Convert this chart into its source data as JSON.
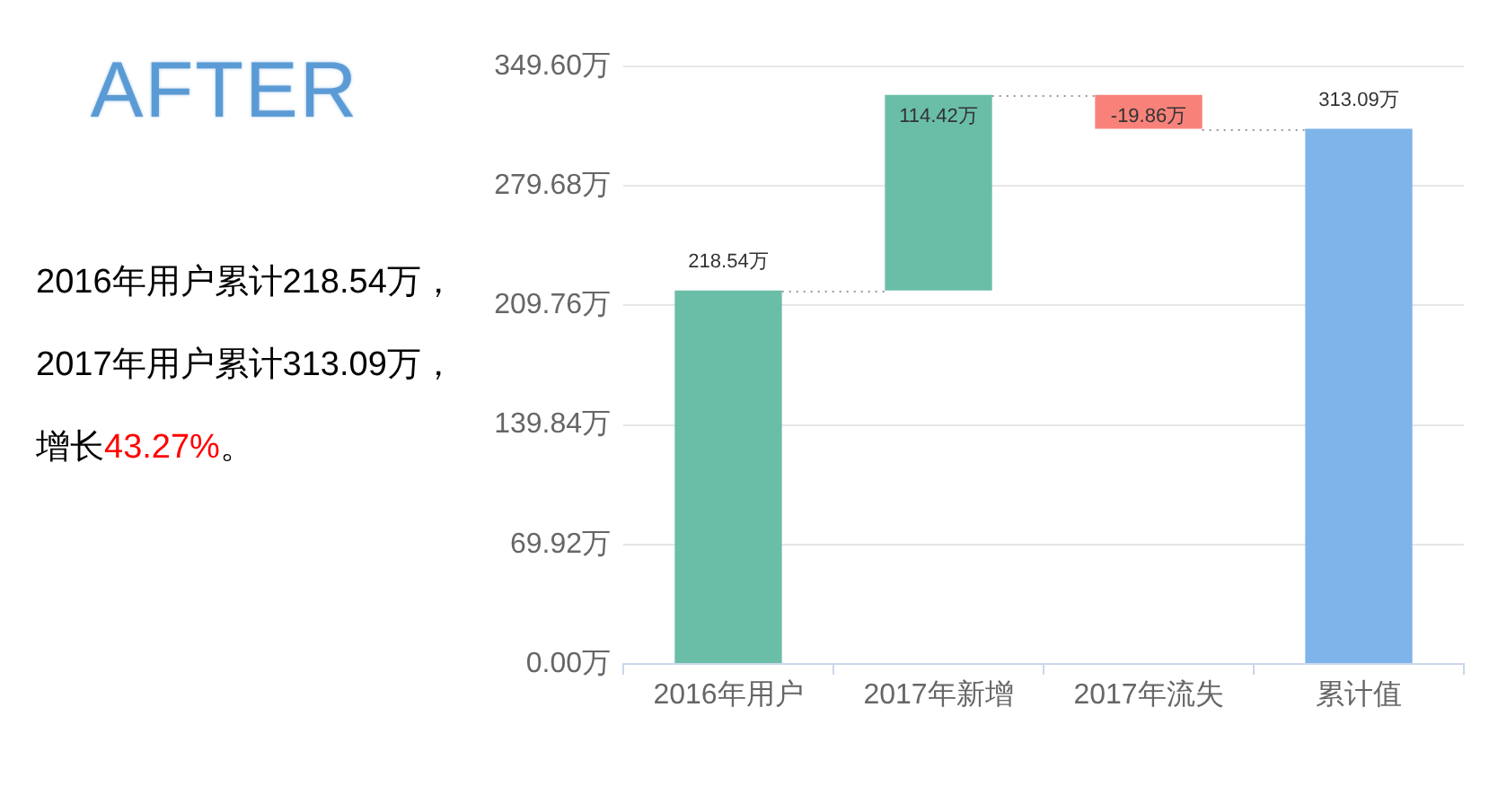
{
  "chart_data": {
    "type": "bar",
    "title": "AFTER",
    "annotations": [
      "2016年用户累计218.54万，",
      "2017年用户累计313.09万，",
      "增长",
      "43.27%",
      "。"
    ],
    "categories": [
      "2016年用户",
      "2017年新增",
      "2017年流失",
      "累计值"
    ],
    "values": [
      218.54,
      114.42,
      -19.86,
      313.09
    ],
    "base": [
      0,
      218.54,
      332.96,
      0
    ],
    "colors": [
      "#6abea8",
      "#6abea8",
      "#f8827a",
      "#7eb4ea"
    ],
    "value_labels": [
      "218.54万",
      "114.42万",
      "-19.86万",
      "313.09万"
    ],
    "ylim": [
      0,
      349.6
    ],
    "yticks": [
      {
        "value": 0,
        "label": "0.00万"
      },
      {
        "value": 69.92,
        "label": "69.92万"
      },
      {
        "value": 139.84,
        "label": "139.84万"
      },
      {
        "value": 209.76,
        "label": "209.76万"
      },
      {
        "value": 279.68,
        "label": "279.68万"
      },
      {
        "value": 349.6,
        "label": "349.60万"
      }
    ],
    "grid": "y"
  }
}
